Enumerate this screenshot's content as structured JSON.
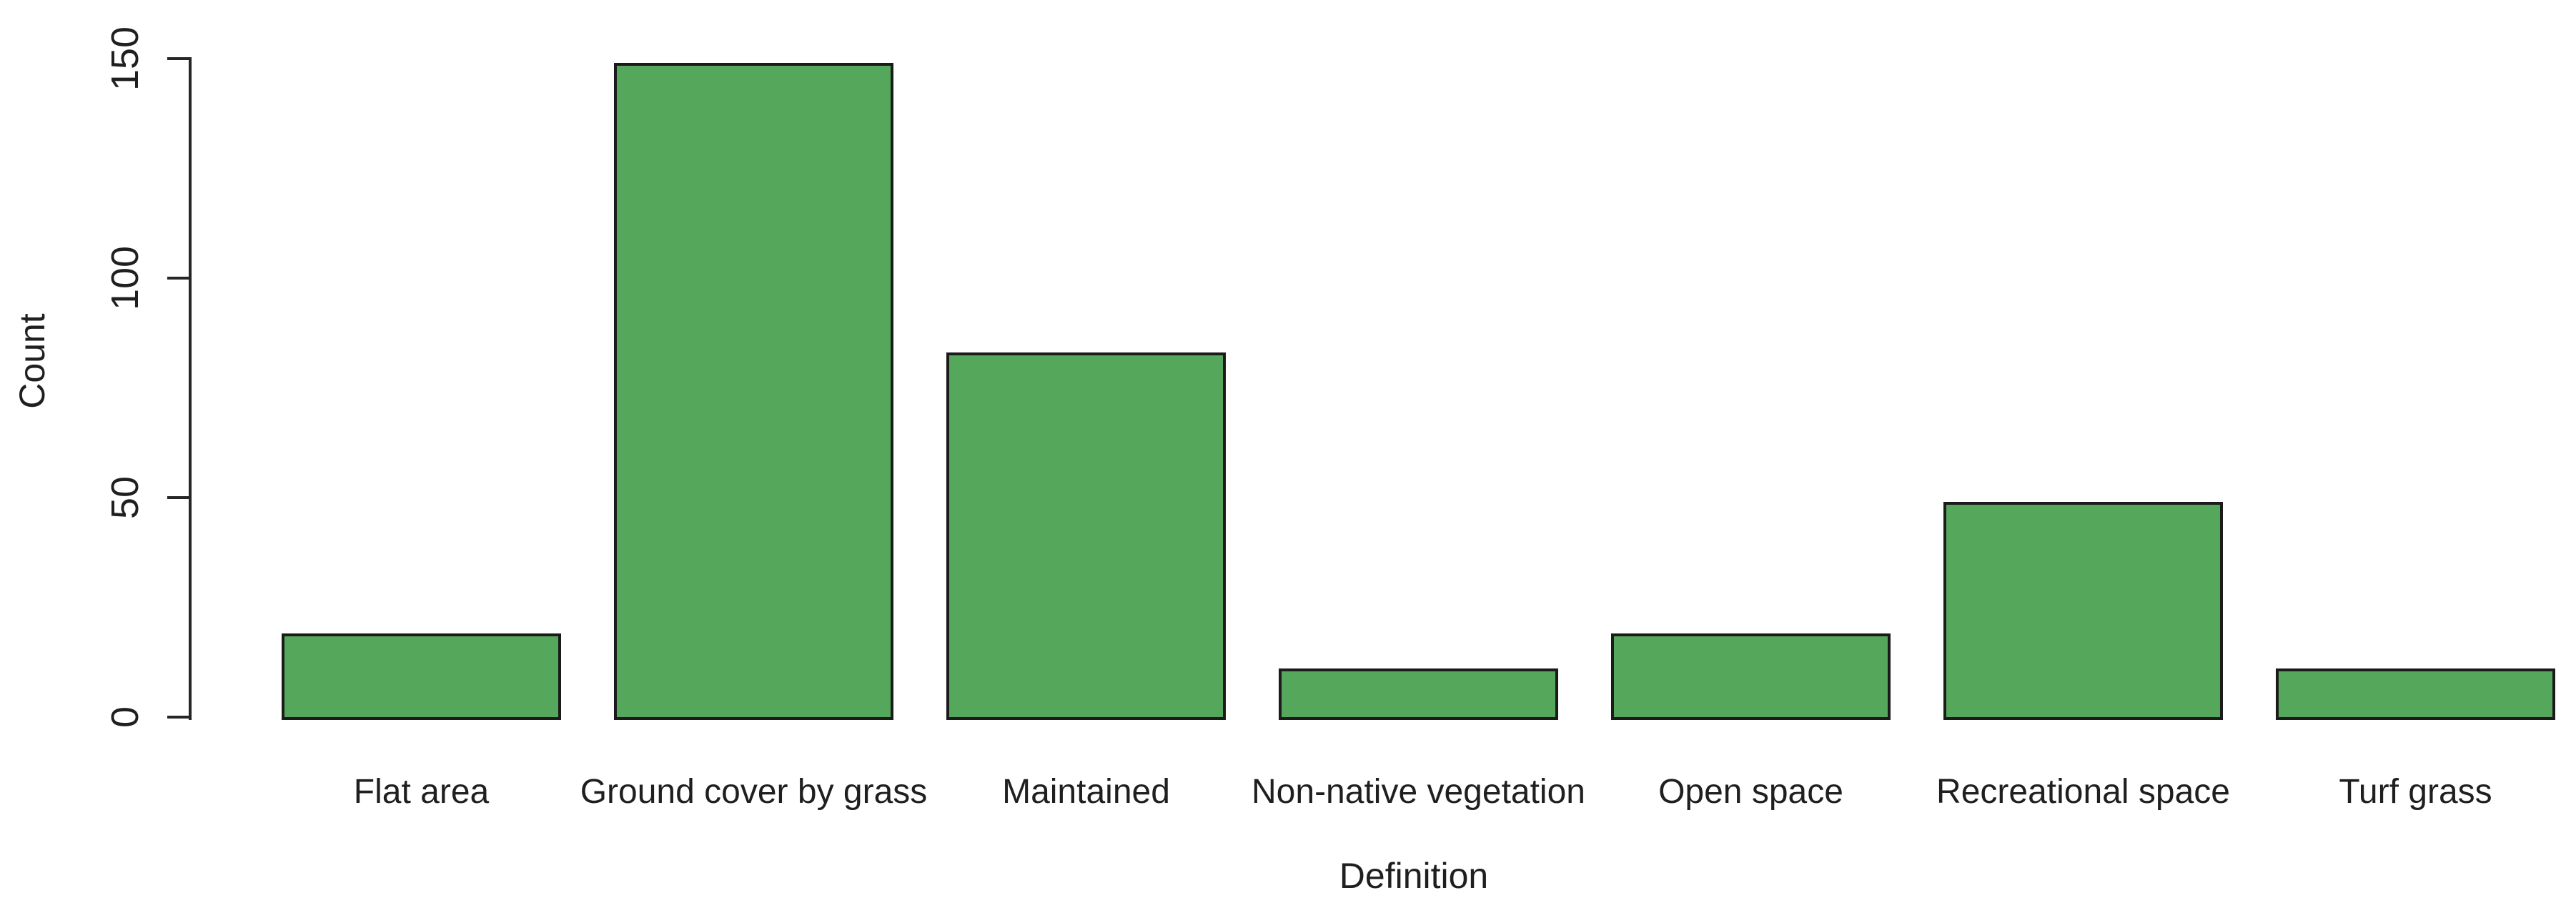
{
  "figure": {
    "background": "#ffffff"
  },
  "chart_data": {
    "type": "bar",
    "title": "",
    "xlabel": "Definition",
    "ylabel": "Count",
    "categories": [
      "Flat area",
      "Ground cover by grass",
      "Maintained",
      "Non-native vegetation",
      "Open space",
      "Recreational space",
      "Turf grass"
    ],
    "values": [
      19,
      149,
      83,
      11,
      19,
      49,
      11
    ],
    "yticks": [
      0,
      50,
      100,
      150
    ],
    "ylim": [
      0,
      150
    ],
    "grid": false,
    "legend": "none",
    "y_tick_label_rotation_deg": -90,
    "bar_fill": "#55a85b",
    "bar_border": "#1b1b1b",
    "axis_color": "#262626",
    "text_color": "#1f1f1f"
  }
}
